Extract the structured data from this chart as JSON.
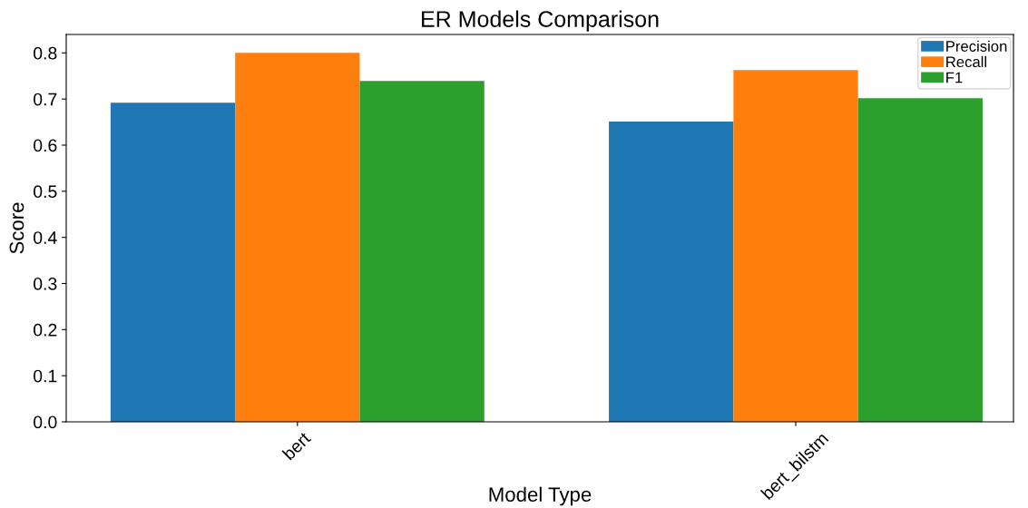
{
  "chart_data": {
    "type": "bar",
    "title": "ER Models Comparison",
    "xlabel": "Model Type",
    "ylabel": "Score",
    "categories": [
      "bert",
      "bert_bilstm"
    ],
    "series": [
      {
        "name": "Precision",
        "color": "#1f77b4",
        "values": [
          0.692,
          0.651
        ]
      },
      {
        "name": "Recall",
        "color": "#ff7f0e",
        "values": [
          0.8,
          0.763
        ]
      },
      {
        "name": "F1",
        "color": "#2ca02c",
        "values": [
          0.739,
          0.702
        ]
      }
    ],
    "ylim": [
      0,
      0.84
    ],
    "yticks": [
      {
        "value": 0,
        "label": "0.0"
      },
      0.1,
      0.2,
      0.3,
      0.4,
      0.5,
      0.6,
      0.7,
      0.8
    ],
    "grid": false,
    "legend": "top right"
  }
}
